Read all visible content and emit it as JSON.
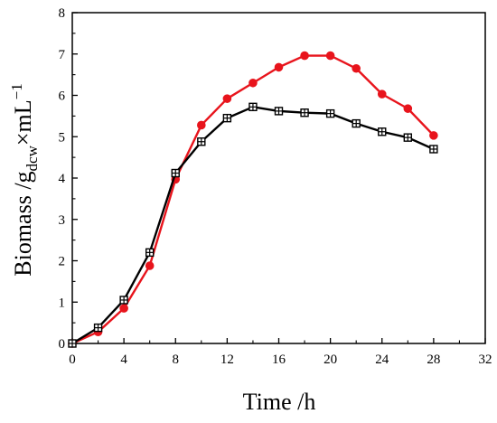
{
  "chart_data": {
    "type": "line",
    "xlabel": "Time /h",
    "ylabel": {
      "prefix": "Biomass /g",
      "subscript": "dcw",
      "middle": "×mL",
      "superscript": "−1"
    },
    "xlim": [
      0,
      32
    ],
    "ylim": [
      0,
      8
    ],
    "xticks": [
      0,
      4,
      8,
      12,
      16,
      20,
      24,
      28,
      32
    ],
    "yticks": [
      0,
      1,
      2,
      3,
      4,
      5,
      6,
      7,
      8
    ],
    "grid": false,
    "legend": "none",
    "series": [
      {
        "color": "#e8141c",
        "marker": "filled-circle",
        "x": [
          0,
          2,
          4,
          6,
          8,
          10,
          12,
          14,
          16,
          18,
          20,
          22,
          24,
          26,
          28
        ],
        "values": [
          0.0,
          0.28,
          0.85,
          1.88,
          3.97,
          5.28,
          5.92,
          6.3,
          6.68,
          6.96,
          6.96,
          6.65,
          6.03,
          5.68,
          5.03
        ]
      },
      {
        "color": "#000000",
        "marker": "open-square-plus",
        "x": [
          0,
          2,
          4,
          6,
          8,
          10,
          12,
          14,
          16,
          18,
          20,
          22,
          24,
          26,
          28
        ],
        "values": [
          0.0,
          0.38,
          1.05,
          2.2,
          4.12,
          4.88,
          5.45,
          5.72,
          5.62,
          5.58,
          5.56,
          5.32,
          5.12,
          4.98,
          4.7
        ]
      }
    ]
  }
}
